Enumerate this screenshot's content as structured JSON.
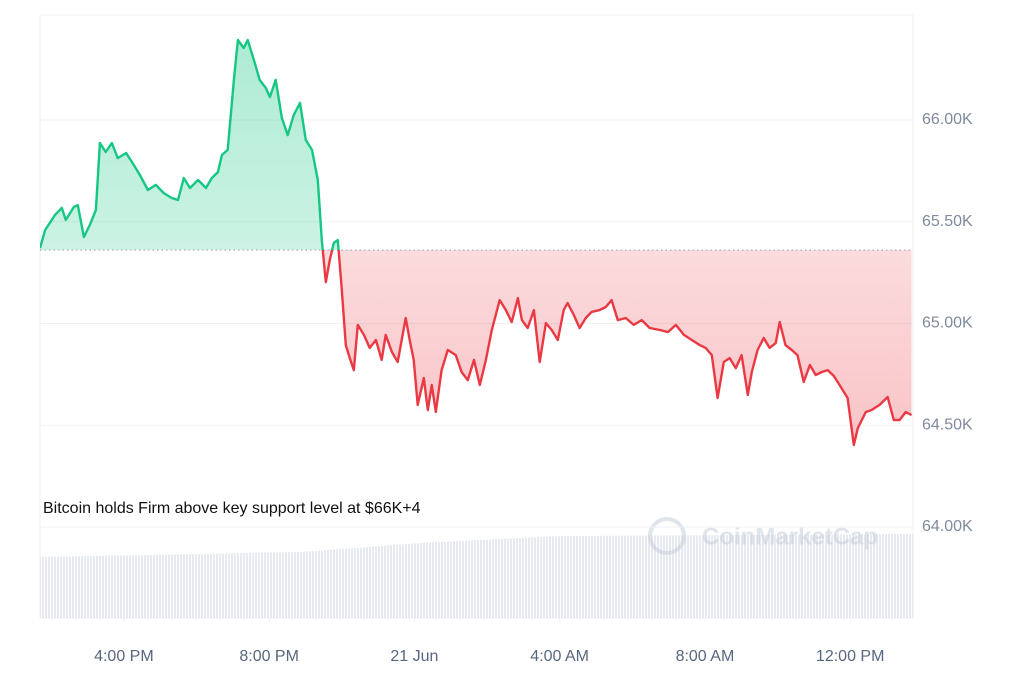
{
  "chart_data": {
    "type": "line",
    "annotation": "Bitcoin holds Firm above key support level at $66K+4",
    "watermark": "CoinMarketCap",
    "baseline": 65361,
    "colors": {
      "above": "#16c784",
      "below": "#ea3943"
    },
    "grid": true,
    "xlim": [
      13.69,
      37.73
    ],
    "ylim": [
      63553,
      66516
    ],
    "xticks": [
      {
        "value": 16,
        "label": "4:00 PM"
      },
      {
        "value": 20,
        "label": "8:00 PM"
      },
      {
        "value": 24,
        "label": "21 Jun"
      },
      {
        "value": 28,
        "label": "4:00 AM"
      },
      {
        "value": 32,
        "label": "8:00 AM"
      },
      {
        "value": 36,
        "label": "12:00 PM"
      }
    ],
    "yticks": [
      {
        "value": 64000,
        "label": "64.00K"
      },
      {
        "value": 64500,
        "label": "64.50K"
      },
      {
        "value": 65000,
        "label": "65.00K"
      },
      {
        "value": 65500,
        "label": "65.50K"
      },
      {
        "value": 66000,
        "label": "66.00K"
      }
    ],
    "x": [
      13.69,
      13.83,
      14.1,
      14.29,
      14.4,
      14.62,
      14.73,
      14.9,
      15.06,
      15.23,
      15.34,
      15.5,
      15.67,
      15.83,
      16.06,
      16.22,
      16.44,
      16.66,
      16.88,
      17.1,
      17.32,
      17.49,
      17.65,
      17.82,
      18.04,
      18.26,
      18.42,
      18.59,
      18.7,
      18.86,
      19.03,
      19.14,
      19.3,
      19.41,
      19.58,
      19.74,
      19.91,
      20.02,
      20.18,
      20.35,
      20.51,
      20.68,
      20.85,
      21.01,
      21.18,
      21.34,
      21.45,
      21.56,
      21.67,
      21.78,
      21.89,
      22.0,
      22.11,
      22.22,
      22.33,
      22.44,
      22.61,
      22.77,
      22.94,
      23.1,
      23.21,
      23.38,
      23.54,
      23.65,
      23.76,
      23.87,
      23.98,
      24.09,
      24.26,
      24.37,
      24.48,
      24.59,
      24.75,
      24.92,
      25.14,
      25.3,
      25.47,
      25.64,
      25.8,
      25.97,
      26.13,
      26.35,
      26.52,
      26.68,
      26.85,
      26.96,
      27.12,
      27.29,
      27.45,
      27.62,
      27.78,
      27.95,
      28.11,
      28.22,
      28.39,
      28.55,
      28.72,
      28.88,
      29.1,
      29.27,
      29.43,
      29.6,
      29.82,
      30.04,
      30.26,
      30.48,
      30.76,
      30.98,
      31.2,
      31.42,
      31.64,
      31.86,
      32.02,
      32.19,
      32.35,
      32.52,
      32.68,
      32.85,
      33.01,
      33.18,
      33.29,
      33.45,
      33.62,
      33.78,
      33.95,
      34.06,
      34.22,
      34.39,
      34.55,
      34.72,
      34.89,
      35.05,
      35.22,
      35.38,
      35.55,
      35.71,
      35.93,
      36.1,
      36.21,
      36.43,
      36.59,
      36.81,
      37.03,
      37.2,
      37.36,
      37.53,
      37.69
    ],
    "values": [
      65371,
      65459,
      65533,
      65568,
      65509,
      65572,
      65582,
      65425,
      65484,
      65558,
      65887,
      65843,
      65887,
      65813,
      65838,
      65794,
      65730,
      65656,
      65681,
      65641,
      65617,
      65607,
      65715,
      65666,
      65705,
      65666,
      65715,
      65744,
      65828,
      65853,
      66197,
      66393,
      66354,
      66393,
      66295,
      66197,
      66157,
      66113,
      66197,
      66010,
      65926,
      66025,
      66084,
      65902,
      65853,
      65705,
      65410,
      65204,
      65312,
      65396,
      65410,
      65165,
      64894,
      64830,
      64771,
      64993,
      64944,
      64880,
      64919,
      64821,
      64944,
      64860,
      64811,
      64919,
      65027,
      64919,
      64821,
      64600,
      64732,
      64575,
      64698,
      64565,
      64771,
      64870,
      64845,
      64762,
      64722,
      64821,
      64698,
      64821,
      64968,
      65115,
      65066,
      65007,
      65125,
      65017,
      64978,
      65066,
      64811,
      65002,
      64968,
      64919,
      65066,
      65101,
      65042,
      64978,
      65027,
      65057,
      65066,
      65081,
      65115,
      65017,
      65027,
      64993,
      65017,
      64978,
      64968,
      64958,
      64993,
      64944,
      64919,
      64894,
      64880,
      64845,
      64634,
      64811,
      64830,
      64781,
      64845,
      64649,
      64762,
      64870,
      64929,
      64880,
      64904,
      65007,
      64894,
      64870,
      64845,
      64713,
      64796,
      64747,
      64762,
      64771,
      64742,
      64698,
      64634,
      64403,
      64486,
      64565,
      64575,
      64600,
      64639,
      64526,
      64526,
      64565,
      64550
    ]
  }
}
